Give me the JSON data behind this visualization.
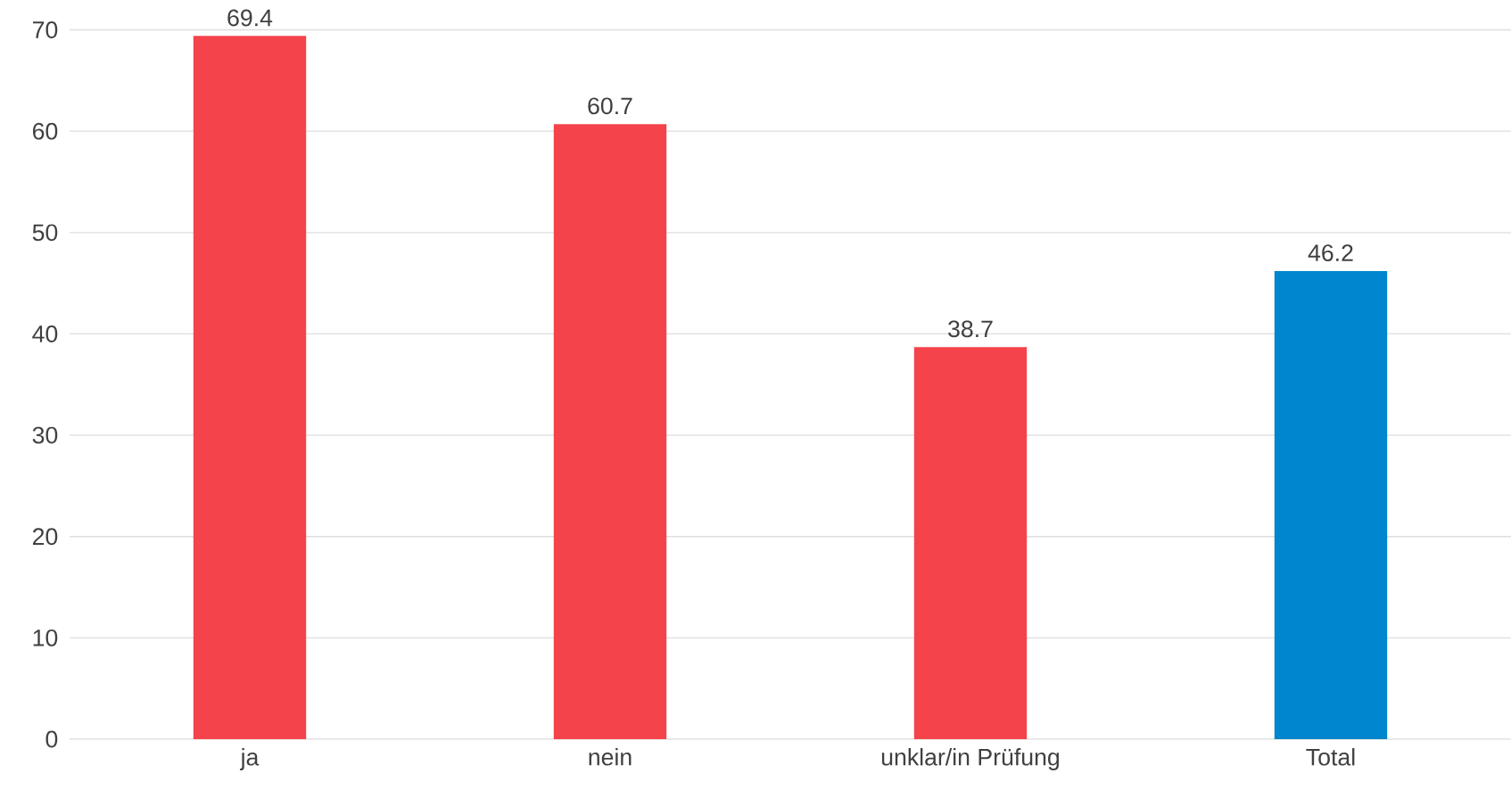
{
  "chart_data": {
    "type": "bar",
    "categories": [
      "ja",
      "nein",
      "unklar/in Prüfung",
      "Total"
    ],
    "values": [
      69.4,
      60.7,
      38.7,
      46.2
    ],
    "colors": [
      "#f4434a",
      "#f4434a",
      "#f4434a",
      "#0086cc"
    ],
    "ylim": [
      0,
      70
    ],
    "yticks": [
      0,
      10,
      20,
      30,
      40,
      50,
      60,
      70
    ],
    "grid": "y",
    "data_labels": true
  }
}
